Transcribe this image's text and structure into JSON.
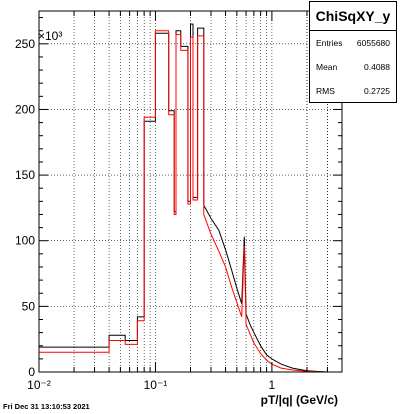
{
  "stats": {
    "title": "ChiSqXY_y",
    "rows": [
      {
        "label": "Entries",
        "value": "6055680"
      },
      {
        "label": "Mean",
        "value": "0.4088"
      },
      {
        "label": "RMS",
        "value": "0.2725"
      }
    ]
  },
  "timestamp": "Fri Dec 31 13:10:53 2021",
  "chart_data": {
    "type": "line",
    "xlabel": "pT/|q| (GeV/c)",
    "ylabel": "",
    "y_exponent_label": "×10³",
    "x_scale": "log",
    "xlim": [
      0.01,
      4
    ],
    "ylim": [
      0,
      275
    ],
    "x_ticks": [
      {
        "value": 0.01,
        "label": "10⁻²"
      },
      {
        "value": 0.1,
        "label": "10⁻¹"
      },
      {
        "value": 1,
        "label": "1"
      }
    ],
    "y_ticks": [
      0,
      50,
      100,
      150,
      200,
      250
    ],
    "grid": true,
    "series": [
      {
        "color": "#000000",
        "points": [
          [
            0.01,
            19
          ],
          [
            0.04,
            19
          ],
          [
            0.04,
            28
          ],
          [
            0.055,
            28
          ],
          [
            0.055,
            24
          ],
          [
            0.07,
            24
          ],
          [
            0.07,
            42
          ],
          [
            0.08,
            42
          ],
          [
            0.08,
            191
          ],
          [
            0.1,
            191
          ],
          [
            0.1,
            258
          ],
          [
            0.13,
            258
          ],
          [
            0.13,
            199
          ],
          [
            0.145,
            199
          ],
          [
            0.145,
            122
          ],
          [
            0.15,
            122
          ],
          [
            0.15,
            260
          ],
          [
            0.165,
            260
          ],
          [
            0.165,
            248
          ],
          [
            0.19,
            248
          ],
          [
            0.19,
            130
          ],
          [
            0.2,
            130
          ],
          [
            0.2,
            265
          ],
          [
            0.21,
            265
          ],
          [
            0.21,
            133
          ],
          [
            0.23,
            133
          ],
          [
            0.23,
            262
          ],
          [
            0.26,
            262
          ],
          [
            0.26,
            127
          ],
          [
            0.3,
            117
          ],
          [
            0.35,
            108
          ],
          [
            0.4,
            93
          ],
          [
            0.45,
            78
          ],
          [
            0.5,
            64
          ],
          [
            0.55,
            52
          ],
          [
            0.58,
            103
          ],
          [
            0.6,
            44
          ],
          [
            0.65,
            36
          ],
          [
            0.7,
            30
          ],
          [
            0.8,
            20
          ],
          [
            0.9,
            13
          ],
          [
            1.0,
            10
          ],
          [
            1.2,
            6
          ],
          [
            1.5,
            3
          ],
          [
            2.0,
            1
          ],
          [
            2.5,
            0.4
          ],
          [
            3.0,
            0
          ]
        ]
      },
      {
        "color": "#ff0000",
        "points": [
          [
            0.01,
            15
          ],
          [
            0.04,
            15
          ],
          [
            0.04,
            24
          ],
          [
            0.055,
            24
          ],
          [
            0.055,
            21
          ],
          [
            0.07,
            21
          ],
          [
            0.07,
            39
          ],
          [
            0.08,
            39
          ],
          [
            0.08,
            194
          ],
          [
            0.1,
            194
          ],
          [
            0.1,
            260
          ],
          [
            0.13,
            260
          ],
          [
            0.13,
            196
          ],
          [
            0.145,
            196
          ],
          [
            0.145,
            120
          ],
          [
            0.15,
            120
          ],
          [
            0.15,
            257
          ],
          [
            0.165,
            257
          ],
          [
            0.165,
            245
          ],
          [
            0.19,
            245
          ],
          [
            0.19,
            128
          ],
          [
            0.2,
            128
          ],
          [
            0.2,
            255
          ],
          [
            0.21,
            255
          ],
          [
            0.21,
            131
          ],
          [
            0.23,
            131
          ],
          [
            0.23,
            256
          ],
          [
            0.26,
            256
          ],
          [
            0.26,
            120
          ],
          [
            0.3,
            105
          ],
          [
            0.35,
            92
          ],
          [
            0.4,
            80
          ],
          [
            0.45,
            65
          ],
          [
            0.5,
            53
          ],
          [
            0.55,
            42
          ],
          [
            0.58,
            96
          ],
          [
            0.6,
            36
          ],
          [
            0.65,
            29
          ],
          [
            0.7,
            22
          ],
          [
            0.8,
            14
          ],
          [
            0.9,
            9
          ],
          [
            1.0,
            6
          ],
          [
            1.2,
            3
          ],
          [
            1.5,
            1.5
          ],
          [
            2.0,
            0.5
          ],
          [
            2.5,
            0.2
          ],
          [
            3.0,
            0
          ]
        ]
      }
    ]
  }
}
